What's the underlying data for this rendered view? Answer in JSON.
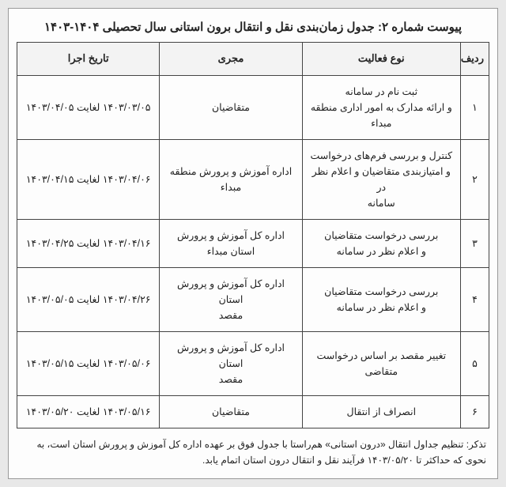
{
  "title": "پیوست شماره ۲: جدول زمان‌بندی نقل و انتقال برون استانی سال تحصیلی ۱۴۰۴-۱۴۰۳",
  "headers": {
    "idx": "ردیف",
    "activity": "نوع فعالیت",
    "executor": "مجری",
    "date": "تاریخ اجرا"
  },
  "rows": [
    {
      "idx": "۱",
      "activity": "ثبت نام در سامانه\nو ارائه مدارک به امور اداری منطقه مبداء",
      "executor": "متقاضیان",
      "date": "۱۴۰۳/۰۳/۰۵ لغایت ۱۴۰۳/۰۴/۰۵"
    },
    {
      "idx": "۲",
      "activity": "کنترل و بررسی فرم‌های درخواست\nو امتیازبندی متقاضیان و اعلام نظر در\nسامانه",
      "executor": "اداره آموزش و پرورش منطقه مبداء",
      "date": "۱۴۰۳/۰۴/۰۶ لغایت ۱۴۰۳/۰۴/۱۵"
    },
    {
      "idx": "۳",
      "activity": "بررسی درخواست متقاضیان\nو اعلام نظر در سامانه",
      "executor": "اداره کل آموزش و پرورش استان مبداء",
      "date": "۱۴۰۳/۰۴/۱۶ لغایت ۱۴۰۳/۰۴/۲۵"
    },
    {
      "idx": "۴",
      "activity": "بررسی درخواست متقاضیان\nو اعلام نظر در سامانه",
      "executor": "اداره کل آموزش و پرورش استان\nمقصد",
      "date": "۱۴۰۳/۰۴/۲۶ لغایت ۱۴۰۳/۰۵/۰۵"
    },
    {
      "idx": "۵",
      "activity": "تغییر مقصد بر اساس درخواست متقاضی",
      "executor": "اداره کل آموزش و پرورش استان\nمقصد",
      "date": "۱۴۰۳/۰۵/۰۶ لغایت ۱۴۰۳/۰۵/۱۵"
    },
    {
      "idx": "۶",
      "activity": "انصراف از انتقال",
      "executor": "متقاضیان",
      "date": "۱۴۰۳/۰۵/۱۶ لغایت ۱۴۰۳/۰۵/۲۰"
    }
  ],
  "note": "تذکر: تنظیم جداول انتقال «درون استانی» هم‌راستا با جدول فوق بر عهده اداره کل آموزش و پرورش استان است، به نحوی که حداکثر تا ۱۴۰۳/۰۵/۲۰ فرآیند نقل و انتقال درون استان اتمام یابد."
}
